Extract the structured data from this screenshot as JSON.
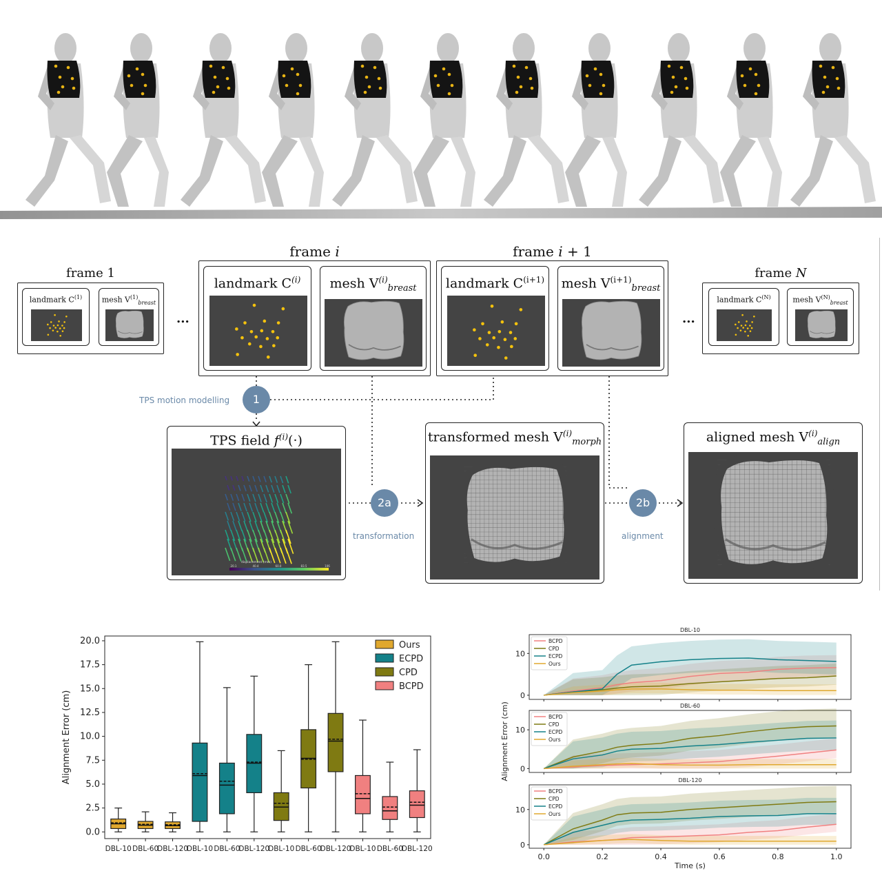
{
  "diagram": {
    "frame_first": {
      "header": "frame 1",
      "landmark": "landmark C",
      "landmark_sup": "(1)",
      "mesh": "mesh V",
      "mesh_sup": "(1)",
      "mesh_sub": "breast"
    },
    "frame_i": {
      "header_pre": "frame ",
      "header_var": "i",
      "landmark": "landmark C",
      "landmark_sup": "(i)",
      "mesh": "mesh V",
      "mesh_sup": "(i)",
      "mesh_sub": "breast"
    },
    "frame_i1": {
      "header_pre": "frame ",
      "header_var": "i",
      "header_post": " + 1",
      "landmark": "landmark C",
      "landmark_sup": "(i+1)",
      "mesh": "mesh V",
      "mesh_sup": "(i+1)",
      "mesh_sub": "breast"
    },
    "frame_last": {
      "header_pre": "frame ",
      "header_var": "N",
      "landmark": "landmark C",
      "landmark_sup": "(N)",
      "mesh": "mesh V",
      "mesh_sup": "(N)",
      "mesh_sub": "breast"
    },
    "ellipsis": "...",
    "step1": {
      "badge": "1",
      "label": "TPS motion modelling"
    },
    "step2a": {
      "badge": "2a",
      "label": "transformation"
    },
    "step2b": {
      "badge": "2b",
      "label": "alignment"
    },
    "tps_box": {
      "title_pre": "TPS field ",
      "title_f": "f",
      "title_sup": "(i)",
      "title_post": "(·)",
      "colorbar_label": "displacement (mm)",
      "colorbar_ticks": [
        "20.1",
        "40.4",
        "60.0",
        "83.5",
        "106"
      ]
    },
    "morph_box": {
      "title": "transformed mesh V",
      "sup": "(i)",
      "sub": "morph"
    },
    "align_box": {
      "title": "aligned mesh V",
      "sup": "(i)",
      "sub": "align"
    }
  },
  "chart_data": [
    {
      "type": "box",
      "title": "",
      "ylabel": "Alignment Error (cm)",
      "ylim": [
        -0.7,
        20.5
      ],
      "yticks": [
        "0.0",
        "2.5",
        "5.0",
        "7.5",
        "10.0",
        "12.5",
        "15.0",
        "17.5",
        "20.0"
      ],
      "categories": [
        "DBL-10",
        "DBL-60",
        "DBL-120",
        "DBL-10",
        "DBL-60",
        "DBL-120",
        "DBL-10",
        "DBL-60",
        "DBL-120",
        "DBL-10",
        "DBL-60",
        "DBL-120"
      ],
      "legend": [
        {
          "name": "Ours",
          "color": "#e0a82e"
        },
        {
          "name": "ECPD",
          "color": "#148189"
        },
        {
          "name": "CPD",
          "color": "#7f7a12"
        },
        {
          "name": "BCPD",
          "color": "#f08080"
        }
      ],
      "boxes": [
        {
          "method": "Ours",
          "min": 0.0,
          "q1": 0.35,
          "median": 0.85,
          "mean": 0.95,
          "q3": 1.35,
          "max": 2.5
        },
        {
          "method": "Ours",
          "min": 0.0,
          "q1": 0.35,
          "median": 0.7,
          "mean": 0.8,
          "q3": 1.1,
          "max": 2.1
        },
        {
          "method": "Ours",
          "min": 0.0,
          "q1": 0.35,
          "median": 0.65,
          "mean": 0.75,
          "q3": 1.05,
          "max": 2.0
        },
        {
          "method": "ECPD",
          "min": 0.0,
          "q1": 1.1,
          "median": 5.9,
          "mean": 6.1,
          "q3": 9.3,
          "max": 19.9
        },
        {
          "method": "ECPD",
          "min": 0.0,
          "q1": 1.9,
          "median": 4.9,
          "mean": 5.3,
          "q3": 7.2,
          "max": 15.1
        },
        {
          "method": "ECPD",
          "min": 0.0,
          "q1": 4.1,
          "median": 7.2,
          "mean": 7.3,
          "q3": 10.2,
          "max": 16.3
        },
        {
          "method": "CPD",
          "min": 0.0,
          "q1": 1.2,
          "median": 2.6,
          "mean": 3.0,
          "q3": 4.1,
          "max": 8.5
        },
        {
          "method": "CPD",
          "min": 0.0,
          "q1": 4.6,
          "median": 7.7,
          "mean": 7.6,
          "q3": 10.7,
          "max": 17.5
        },
        {
          "method": "CPD",
          "min": 0.0,
          "q1": 6.3,
          "median": 9.5,
          "mean": 9.7,
          "q3": 12.4,
          "max": 19.9
        },
        {
          "method": "BCPD",
          "min": 0.0,
          "q1": 1.9,
          "median": 3.5,
          "mean": 4.0,
          "q3": 5.9,
          "max": 11.7
        },
        {
          "method": "BCPD",
          "min": 0.0,
          "q1": 1.3,
          "median": 2.2,
          "mean": 2.6,
          "q3": 3.7,
          "max": 7.3
        },
        {
          "method": "BCPD",
          "min": 0.0,
          "q1": 1.5,
          "median": 2.8,
          "mean": 3.1,
          "q3": 4.3,
          "max": 8.6
        }
      ]
    },
    {
      "type": "line",
      "xlabel": "Time (s)",
      "ylabel": "Alignment Error (cm)",
      "xlim": [
        -0.05,
        1.05
      ],
      "xticks": [
        "0.0",
        "0.2",
        "0.4",
        "0.6",
        "0.8",
        "1.0"
      ],
      "yticks": [
        "0",
        "10"
      ],
      "legend_order": [
        "BCPD",
        "CPD",
        "ECPD",
        "Ours"
      ],
      "colors": {
        "BCPD": "#f08080",
        "CPD": "#7f7a12",
        "ECPD": "#148189",
        "Ours": "#e0a82e"
      },
      "x": [
        0.0,
        0.1,
        0.2,
        0.25,
        0.3,
        0.4,
        0.5,
        0.6,
        0.7,
        0.8,
        0.9,
        1.0
      ],
      "panels": [
        {
          "title": "DBL-10",
          "ylim": [
            -1,
            14.5
          ],
          "series": [
            {
              "name": "BCPD",
              "values": [
                0,
                1.0,
                1.8,
                2.5,
                3.0,
                3.5,
                4.5,
                5.2,
                5.5,
                6.2,
                6.5,
                6.6
              ],
              "band": 3
            },
            {
              "name": "CPD",
              "values": [
                0,
                0.8,
                1.3,
                1.7,
                2.0,
                2.2,
                2.8,
                3.2,
                3.6,
                4.0,
                4.2,
                4.6
              ],
              "band": 3
            },
            {
              "name": "ECPD",
              "values": [
                0,
                0.8,
                1.5,
                5.0,
                7.2,
                8.0,
                8.5,
                8.8,
                8.9,
                8.5,
                8.3,
                8.1
              ],
              "band": 4.5
            },
            {
              "name": "Ours",
              "values": [
                0,
                0.6,
                1.0,
                1.3,
                1.5,
                1.5,
                1.3,
                1.2,
                1.2,
                1.1,
                1.1,
                1.1
              ],
              "band": 1.5
            }
          ]
        },
        {
          "title": "DBL-60",
          "ylim": [
            -1,
            15
          ],
          "series": [
            {
              "name": "BCPD",
              "values": [
                0,
                0.4,
                0.8,
                0.9,
                1.0,
                1.2,
                1.5,
                1.8,
                2.5,
                3.2,
                4.0,
                4.8
              ],
              "band": 3
            },
            {
              "name": "CPD",
              "values": [
                0,
                3.0,
                4.5,
                5.5,
                6.0,
                6.5,
                7.8,
                8.5,
                9.5,
                10.3,
                10.8,
                11.0
              ],
              "band": 4.5
            },
            {
              "name": "ECPD",
              "values": [
                0,
                2.5,
                3.5,
                4.5,
                5.0,
                5.2,
                5.8,
                6.2,
                6.8,
                7.3,
                7.8,
                7.9
              ],
              "band": 4.5
            },
            {
              "name": "Ours",
              "values": [
                0,
                0.6,
                1.0,
                1.2,
                1.3,
                1.0,
                0.9,
                0.9,
                1.0,
                1.0,
                1.0,
                1.0
              ],
              "band": 1.5
            }
          ]
        },
        {
          "title": "DBL-120",
          "ylim": [
            -1,
            17
          ],
          "series": [
            {
              "name": "BCPD",
              "values": [
                0,
                0.8,
                1.2,
                1.5,
                2.0,
                2.2,
                2.5,
                2.8,
                3.5,
                4.0,
                5.0,
                5.8
              ],
              "band": 3
            },
            {
              "name": "CPD",
              "values": [
                0,
                4.5,
                7.0,
                8.5,
                9.0,
                9.2,
                10.0,
                10.5,
                11.0,
                11.5,
                12.0,
                12.2
              ],
              "band": 4.5
            },
            {
              "name": "ECPD",
              "values": [
                0,
                3.5,
                5.5,
                6.5,
                7.0,
                7.2,
                7.5,
                8.0,
                8.2,
                8.3,
                8.8,
                8.8
              ],
              "band": 4.5
            },
            {
              "name": "Ours",
              "values": [
                0,
                0.6,
                1.2,
                1.4,
                1.5,
                1.2,
                1.0,
                1.0,
                1.0,
                1.0,
                1.0,
                1.0
              ],
              "band": 1.5
            }
          ]
        }
      ]
    }
  ]
}
